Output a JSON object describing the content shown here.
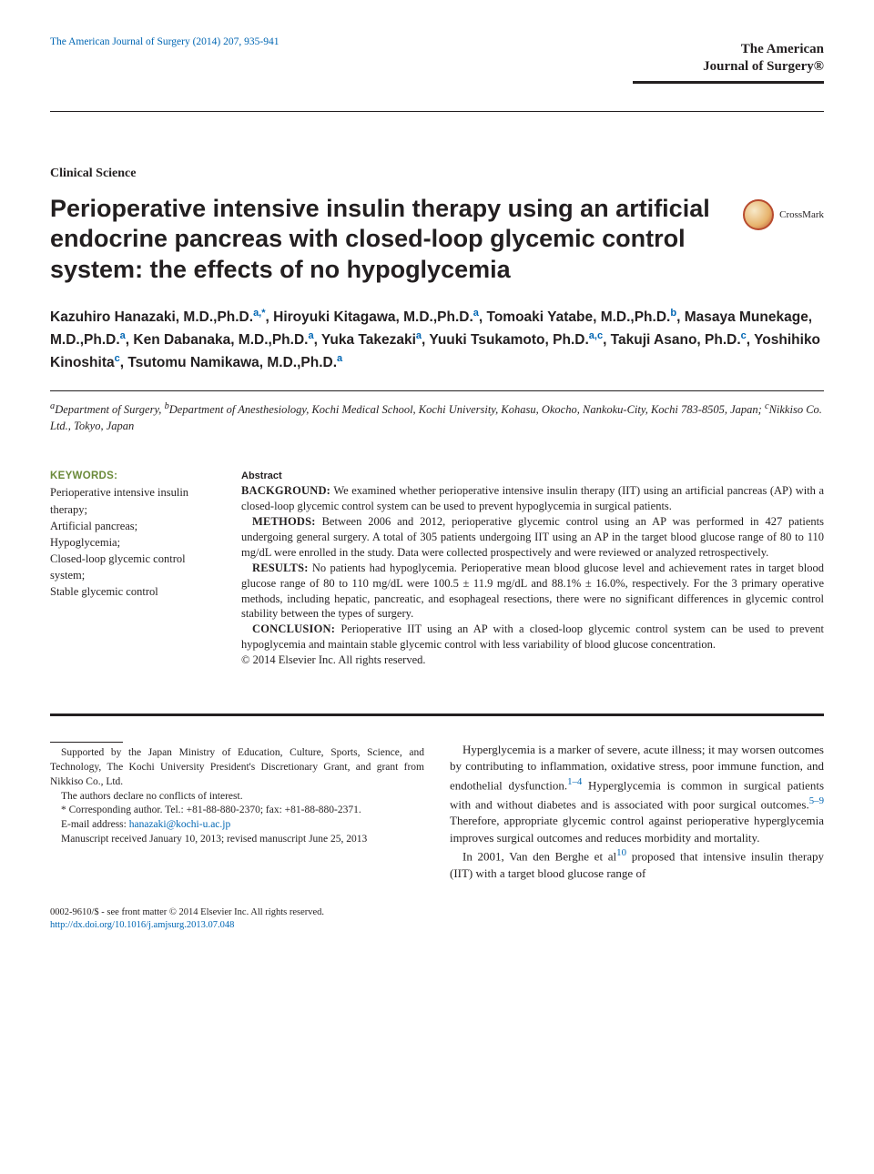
{
  "header": {
    "journal_ref": "The American Journal of Surgery (2014) 207, 935-941",
    "journal_title_line1": "The American",
    "journal_title_line2": "Journal of Surgery®"
  },
  "article": {
    "section_label": "Clinical Science",
    "title": "Perioperative intensive insulin therapy using an artificial endocrine pancreas with closed-loop glycemic control system: the effects of no hypoglycemia",
    "crossmark": "CrossMark"
  },
  "authors_html": "Kazuhiro Hanazaki, M.D.,Ph.D.<span class=\"sup\">a,</span><span class=\"sup\">*</span>, Hiroyuki Kitagawa, M.D.,Ph.D.<span class=\"sup\">a</span>, Tomoaki Yatabe, M.D.,Ph.D.<span class=\"sup\">b</span>, Masaya Munekage, M.D.,Ph.D.<span class=\"sup\">a</span>, Ken Dabanaka, M.D.,Ph.D.<span class=\"sup\">a</span>, Yuka Takezaki<span class=\"sup\">a</span>, Yuuki Tsukamoto, Ph.D.<span class=\"sup\">a,c</span>, Takuji Asano, Ph.D.<span class=\"sup\">c</span>, Yoshihiko Kinoshita<span class=\"sup\">c</span>, Tsutomu Namikawa, M.D.,Ph.D.<span class=\"sup\">a</span>",
  "affiliations_html": "<sup>a</sup>Department of Surgery, <sup>b</sup>Department of Anesthesiology, Kochi Medical School, Kochi University, Kohasu, Okocho, Nankoku-City, Kochi 783-8505, Japan; <sup>c</sup>Nikkiso Co. Ltd., Tokyo, Japan",
  "keywords": {
    "heading": "KEYWORDS:",
    "list": "Perioperative intensive insulin therapy;\nArtificial pancreas;\nHypoglycemia;\nClosed-loop glycemic control system;\nStable glycemic control"
  },
  "abstract": {
    "heading": "Abstract",
    "background_label": "BACKGROUND:",
    "background": "We examined whether perioperative intensive insulin therapy (IIT) using an artificial pancreas (AP) with a closed-loop glycemic control system can be used to prevent hypoglycemia in surgical patients.",
    "methods_label": "METHODS:",
    "methods": "Between 2006 and 2012, perioperative glycemic control using an AP was performed in 427 patients undergoing general surgery. A total of 305 patients undergoing IIT using an AP in the target blood glucose range of 80 to 110 mg/dL were enrolled in the study. Data were collected prospectively and were reviewed or analyzed retrospectively.",
    "results_label": "RESULTS:",
    "results": "No patients had hypoglycemia. Perioperative mean blood glucose level and achievement rates in target blood glucose range of 80 to 110 mg/dL were 100.5 ± 11.9 mg/dL and 88.1% ± 16.0%, respectively. For the 3 primary operative methods, including hepatic, pancreatic, and esophageal resections, there were no significant differences in glycemic control stability between the types of surgery.",
    "conclusion_label": "CONCLUSION:",
    "conclusion": "Perioperative IIT using an AP with a closed-loop glycemic control system can be used to prevent hypoglycemia and maintain stable glycemic control with less variability of blood glucose concentration.",
    "copyright": "© 2014 Elsevier Inc. All rights reserved."
  },
  "footnotes": {
    "funding": "Supported by the Japan Ministry of Education, Culture, Sports, Science, and Technology, The Kochi University President's Discretionary Grant, and grant from Nikkiso Co., Ltd.",
    "coi": "The authors declare no conflicts of interest.",
    "corresponding": "* Corresponding author. Tel.: +81-88-880-2370; fax: +81-88-880-2371.",
    "email_label": "E-mail address: ",
    "email": "hanazaki@kochi-u.ac.jp",
    "received": "Manuscript received January 10, 2013; revised manuscript June 25, 2013"
  },
  "body": {
    "p1_html": "Hyperglycemia is a marker of severe, acute illness; it may worsen outcomes by contributing to inflammation, oxidative stress, poor immune function, and endothelial dysfunction.<sup class=\"ref-link\">1–4</sup> Hyperglycemia is common in surgical patients with and without diabetes and is associated with poor surgical outcomes.<sup class=\"ref-link\">5–9</sup> Therefore, appropriate glycemic control against perioperative hyperglycemia improves surgical outcomes and reduces morbidity and mortality.",
    "p2_html": "In 2001, Van den Berghe et al<sup class=\"ref-link\">10</sup> proposed that intensive insulin therapy (IIT) with a target blood glucose range of"
  },
  "footer": {
    "issn": "0002-9610/$ - see front matter © 2014 Elsevier Inc. All rights reserved.",
    "doi": "http://dx.doi.org/10.1016/j.amjsurg.2013.07.048"
  },
  "colors": {
    "link": "#0066b3",
    "keyword_heading": "#6b8a3a",
    "text": "#231f20"
  }
}
